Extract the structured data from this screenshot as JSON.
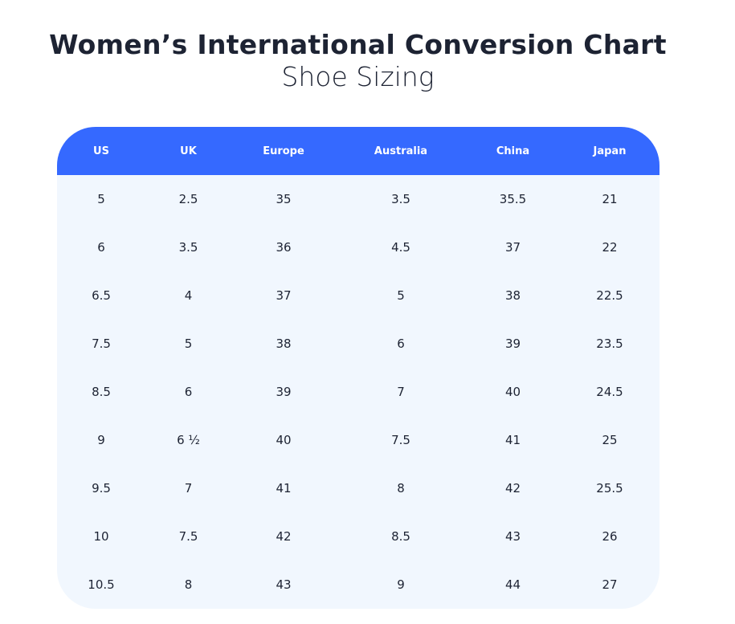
{
  "title": "Women’s International Conversion Chart",
  "subtitle": "Shoe Sizing",
  "colors": {
    "header": "#3569ff",
    "body": "#f1f7fe",
    "text": "#1d2333"
  },
  "table": {
    "headers": [
      "US",
      "UK",
      "Europe",
      "Australia",
      "China",
      "Japan"
    ],
    "rows": [
      [
        "5",
        "2.5",
        "35",
        "3.5",
        "35.5",
        "21"
      ],
      [
        "6",
        "3.5",
        "36",
        "4.5",
        "37",
        "22"
      ],
      [
        "6.5",
        "4",
        "37",
        "5",
        "38",
        "22.5"
      ],
      [
        "7.5",
        "5",
        "38",
        "6",
        "39",
        "23.5"
      ],
      [
        "8.5",
        "6",
        "39",
        "7",
        "40",
        "24.5"
      ],
      [
        "9",
        "6 ½",
        "40",
        "7.5",
        "41",
        "25"
      ],
      [
        "9.5",
        "7",
        "41",
        "8",
        "42",
        "25.5"
      ],
      [
        "10",
        "7.5",
        "42",
        "8.5",
        "43",
        "26"
      ],
      [
        "10.5",
        "8",
        "43",
        "9",
        "44",
        "27"
      ]
    ]
  }
}
